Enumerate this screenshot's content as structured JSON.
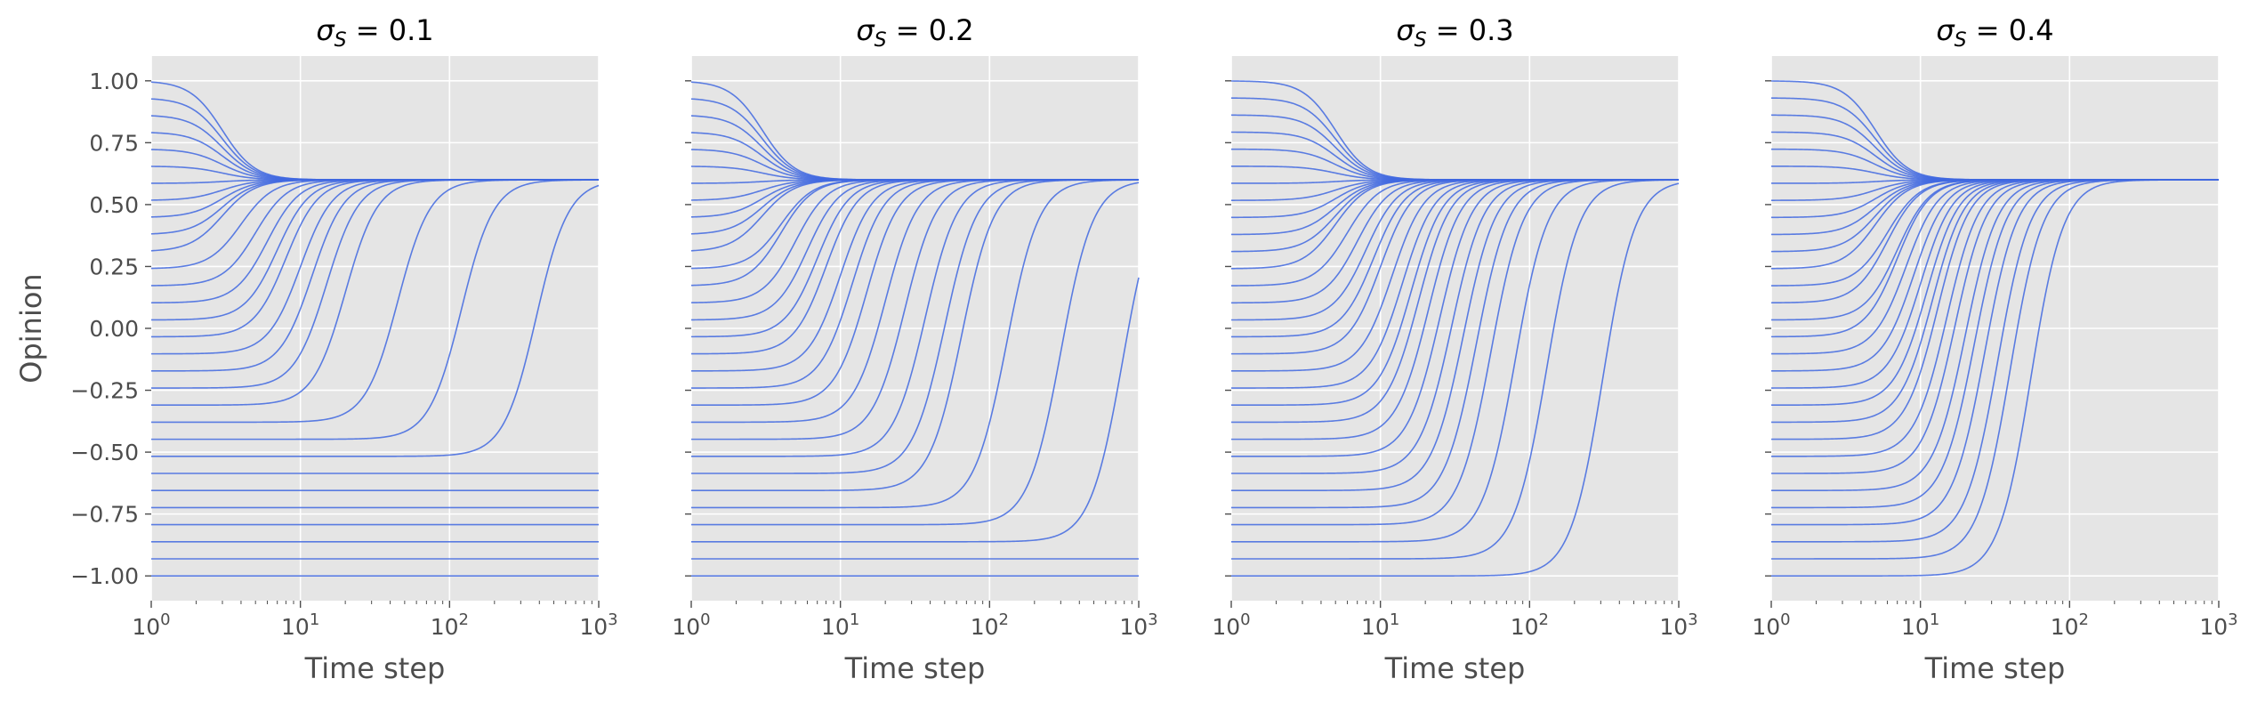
{
  "chart_data": {
    "type": "line",
    "style": {
      "panel_background": "#e5e5e5",
      "grid_color": "#ffffff",
      "line_color": "#4169e1",
      "tick_label_color": "#4d4d4d"
    },
    "shared_y_axis": {
      "label": "Opinion",
      "ylim": [
        -1.1,
        1.1
      ],
      "ticks": [
        1.0,
        0.75,
        0.5,
        0.25,
        0.0,
        -0.25,
        -0.5,
        -0.75,
        -1.0
      ],
      "tick_labels": [
        "1.00",
        "0.75",
        "0.50",
        "0.25",
        "0.00",
        "−0.25",
        "−0.50",
        "−0.75",
        "−1.00"
      ]
    },
    "shared_x_axis": {
      "label": "Time step",
      "scale": "log",
      "xlim": [
        1,
        1000
      ],
      "ticks": [
        1,
        10,
        100,
        1000
      ],
      "tick_labels": [
        {
          "base": "10",
          "exp": "0"
        },
        {
          "base": "10",
          "exp": "1"
        },
        {
          "base": "10",
          "exp": "2"
        },
        {
          "base": "10",
          "exp": "3"
        }
      ]
    },
    "consensus_value": 0.6,
    "initial_opinions": [
      1.0,
      0.931,
      0.862,
      0.793,
      0.724,
      0.655,
      0.586,
      0.517,
      0.448,
      0.379,
      0.31,
      0.241,
      0.172,
      0.103,
      0.034,
      -0.034,
      -0.103,
      -0.172,
      -0.241,
      -0.31,
      -0.379,
      -0.448,
      -0.517,
      -0.586,
      -0.655,
      -0.724,
      -0.793,
      -0.862,
      -0.931,
      -1.0
    ],
    "panels": [
      {
        "title": {
          "symbol": "σ",
          "subscript": "S",
          "rest": " = 0.1"
        },
        "series_convergence_steps": [
          3,
          3,
          3,
          3,
          3,
          3,
          3,
          3,
          3,
          3,
          3,
          4,
          5,
          6,
          7,
          8,
          10,
          12,
          15,
          20,
          45,
          120,
          380,
          null,
          null,
          null,
          null,
          null,
          null,
          null
        ]
      },
      {
        "title": {
          "symbol": "σ",
          "subscript": "S",
          "rest": " = 0.2"
        },
        "series_convergence_steps": [
          3,
          3,
          3,
          3,
          3,
          3,
          3,
          3,
          3,
          3,
          3,
          4,
          4,
          5,
          6,
          7,
          8,
          10,
          12,
          15,
          20,
          27,
          37,
          50,
          65,
          130,
          300,
          780,
          null,
          null
        ]
      },
      {
        "title": {
          "symbol": "σ",
          "subscript": "S",
          "rest": " = 0.3"
        },
        "series_convergence_steps": [
          5,
          5,
          5,
          5,
          5,
          5,
          5,
          5,
          5,
          5,
          5,
          5,
          6,
          7,
          8,
          9,
          10,
          12,
          14,
          16,
          18,
          21,
          25,
          30,
          36,
          44,
          55,
          80,
          130,
          310
        ]
      },
      {
        "title": {
          "symbol": "σ",
          "subscript": "S",
          "rest": " = 0.4"
        },
        "series_convergence_steps": [
          5,
          5,
          5,
          5,
          5,
          5,
          5,
          5,
          5,
          5,
          5,
          5,
          6,
          6,
          7,
          7,
          8,
          9,
          10,
          11,
          12,
          13,
          15,
          17,
          20,
          23,
          27,
          33,
          40,
          55
        ]
      }
    ]
  }
}
